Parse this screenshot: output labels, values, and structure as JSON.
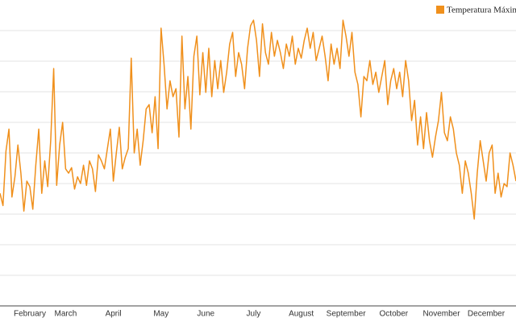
{
  "chart_data": {
    "type": "line",
    "categories": [
      null,
      null,
      null,
      null,
      null,
      null,
      null,
      null,
      null,
      null,
      "February",
      null,
      null,
      null,
      null,
      null,
      null,
      null,
      null,
      null,
      null,
      null,
      "March",
      null,
      null,
      null,
      null,
      null,
      null,
      null,
      null,
      null,
      null,
      null,
      null,
      null,
      null,
      null,
      "April",
      null,
      null,
      null,
      null,
      null,
      null,
      null,
      null,
      null,
      null,
      null,
      null,
      null,
      null,
      null,
      "May",
      null,
      null,
      null,
      null,
      null,
      null,
      null,
      null,
      null,
      null,
      null,
      null,
      null,
      null,
      "June",
      null,
      null,
      null,
      null,
      null,
      null,
      null,
      null,
      null,
      null,
      null,
      null,
      null,
      null,
      null,
      "July",
      null,
      null,
      null,
      null,
      null,
      null,
      null,
      null,
      null,
      null,
      null,
      null,
      null,
      null,
      null,
      "August",
      null,
      null,
      null,
      null,
      null,
      null,
      null,
      null,
      null,
      null,
      null,
      null,
      null,
      null,
      "September",
      null,
      null,
      null,
      null,
      null,
      null,
      null,
      null,
      null,
      null,
      null,
      null,
      null,
      null,
      null,
      "October",
      null,
      null,
      null,
      null,
      null,
      null,
      null,
      null,
      null,
      null,
      null,
      null,
      null,
      null,
      null,
      "November",
      null,
      null,
      null,
      null,
      null,
      null,
      null,
      null,
      null,
      null,
      null,
      null,
      null,
      null,
      "December",
      null,
      null,
      null,
      null,
      null,
      null,
      null,
      null,
      null,
      null
    ],
    "series": [
      {
        "name": "Temperatura Máxima",
        "color": "#f0901c",
        "values": [
          13.4,
          11.4,
          20.3,
          23.9,
          12.8,
          16.1,
          21.3,
          16.7,
          10.5,
          15.4,
          14.5,
          10.8,
          18.0,
          23.9,
          13.4,
          18.7,
          14.5,
          22.0,
          33.8,
          14.7,
          21.3,
          25.0,
          17.4,
          16.7,
          17.6,
          14.1,
          16.1,
          15.0,
          18.0,
          14.7,
          18.7,
          17.4,
          13.7,
          19.7,
          18.7,
          17.4,
          20.7,
          23.9,
          15.4,
          20.0,
          24.2,
          17.4,
          19.3,
          20.7,
          35.5,
          20.0,
          23.9,
          18.0,
          22.0,
          27.2,
          27.9,
          23.3,
          29.2,
          20.7,
          40.4,
          34.5,
          27.2,
          31.8,
          29.2,
          30.5,
          22.6,
          39.1,
          27.2,
          32.5,
          23.9,
          35.8,
          39.1,
          29.5,
          36.4,
          29.9,
          37.1,
          29.2,
          35.1,
          30.5,
          35.1,
          29.9,
          33.2,
          37.8,
          39.7,
          32.5,
          36.4,
          34.5,
          30.5,
          37.1,
          40.8,
          41.7,
          38.4,
          32.5,
          41.1,
          36.4,
          34.5,
          39.7,
          35.8,
          38.4,
          36.4,
          33.8,
          37.8,
          35.8,
          39.1,
          34.5,
          37.1,
          35.5,
          38.4,
          40.4,
          37.1,
          39.7,
          35.1,
          37.1,
          39.1,
          35.8,
          31.8,
          37.8,
          34.5,
          37.1,
          33.8,
          41.7,
          39.1,
          35.8,
          39.7,
          33.2,
          31.2,
          25.9,
          32.5,
          31.8,
          35.1,
          31.2,
          33.2,
          29.9,
          32.5,
          35.1,
          27.9,
          31.8,
          33.8,
          30.5,
          33.2,
          29.2,
          35.1,
          31.8,
          25.3,
          28.6,
          21.3,
          25.9,
          20.7,
          26.6,
          22.0,
          19.3,
          22.6,
          25.3,
          29.9,
          23.3,
          22.0,
          25.9,
          23.9,
          20.0,
          18.0,
          13.4,
          18.7,
          16.7,
          13.4,
          9.2,
          16.7,
          22.0,
          18.7,
          15.4,
          20.0,
          21.3,
          13.4,
          16.7,
          12.8,
          15.0,
          14.5,
          20.0,
          18.0,
          15.4
        ]
      }
    ],
    "ylim": [
      -5,
      45
    ],
    "yticks": [
      0,
      5,
      10,
      15,
      20,
      25,
      30,
      35,
      40
    ],
    "grid": true
  }
}
